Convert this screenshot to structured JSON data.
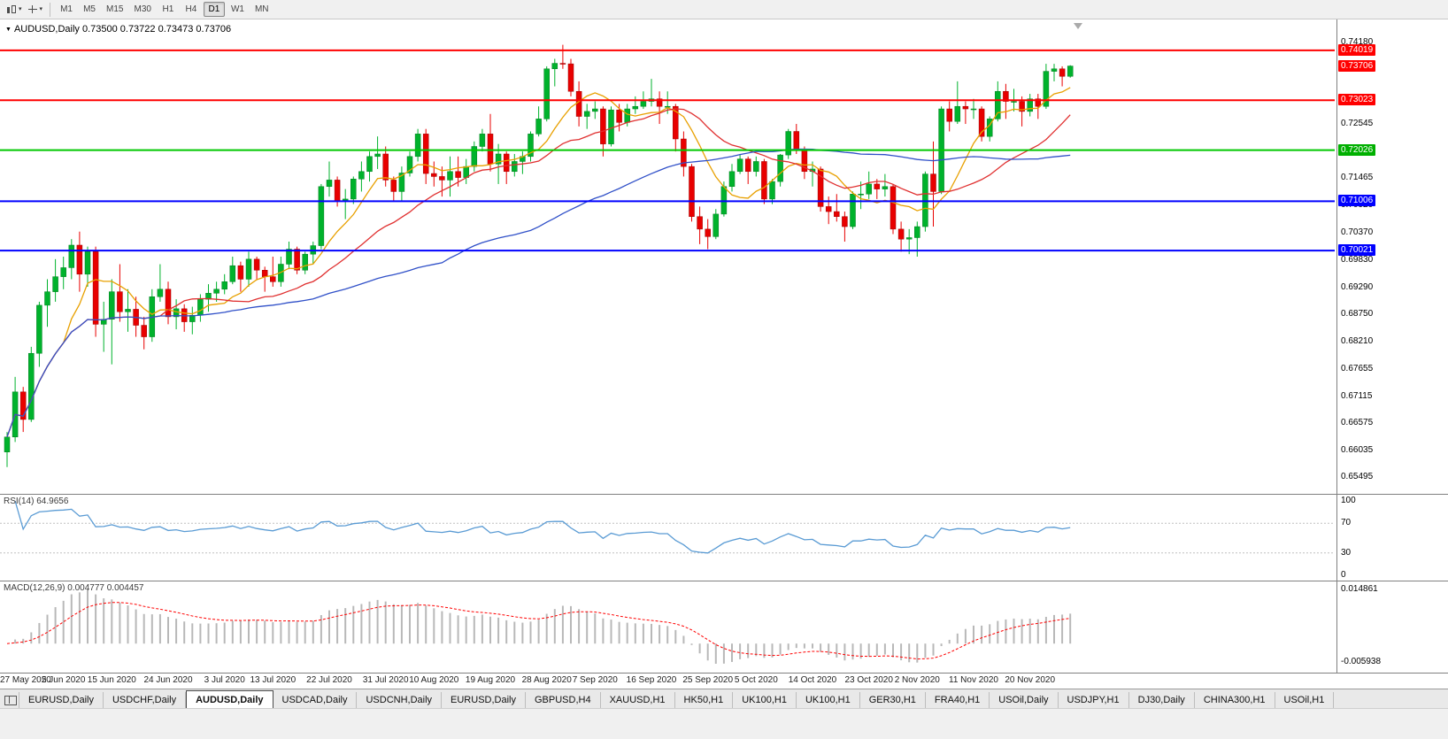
{
  "icons": {
    "caret_down": "▾",
    "triangle_down": "▼"
  },
  "colors": {
    "bull": "#00b22c",
    "bear": "#e80000",
    "bull_edge": "#007d1f",
    "bear_edge": "#9e0000",
    "rsi_line": "#5a9bd4",
    "rsi_level": "#c0c0c0",
    "macd_bar": "#b8b8b8",
    "macd_signal": "#ff0000",
    "panel_border": "#808080"
  },
  "toolbar": {
    "timeframes": [
      "M1",
      "M5",
      "M15",
      "M30",
      "H1",
      "H4",
      "D1",
      "W1",
      "MN"
    ],
    "active_timeframe": "D1"
  },
  "main_chart": {
    "title": "AUDUSD,Daily 0.73500 0.73722 0.73473 0.73706",
    "axis_labels": [
      "0.74180",
      "0.72545",
      "0.71465",
      "0.70920",
      "0.70370",
      "0.69830",
      "0.69290",
      "0.68750",
      "0.68210",
      "0.67655",
      "0.67115",
      "0.66575",
      "0.66035",
      "0.65495"
    ]
  },
  "rsi_panel": {
    "label": "RSI(14) 64.9656",
    "period": 14,
    "axis_labels": [
      "100",
      "70",
      "30",
      "0"
    ],
    "axis_values": [
      100,
      70,
      30,
      0
    ],
    "level_lines": [
      70,
      30
    ]
  },
  "macd_panel": {
    "label": "MACD(12,26,9) 0.004777 0.004457",
    "fast": 12,
    "slow": 26,
    "signal": 9,
    "axis_top": "0.014861",
    "axis_bottom": "-0.005938"
  },
  "bottom_tabs": {
    "active_index": 2,
    "tabs": [
      "EURUSD,Daily",
      "USDCHF,Daily",
      "AUDUSD,Daily",
      "USDCAD,Daily",
      "USDCNH,Daily",
      "EURUSD,Daily",
      "GBPUSD,H4",
      "XAUUSD,H1",
      "HK50,H1",
      "UK100,H1",
      "UK100,H1",
      "GER30,H1",
      "FRA40,H1",
      "USOil,Daily",
      "USDJPY,H1",
      "DJ30,Daily",
      "CHINA300,H1",
      "USOil,H1"
    ]
  },
  "chart_data": {
    "type": "candlestick",
    "symbol": "AUDUSD",
    "timeframe": "Daily",
    "current_price": "0.73706",
    "last_ohlc": {
      "open": "0.73500",
      "high": "0.73722",
      "low": "0.73473",
      "close": "0.73706"
    },
    "ylim": [
      0.652,
      0.746
    ],
    "x_tick_labels": [
      "27 May 2020",
      "5 Jun 2020",
      "15 Jun 2020",
      "24 Jun 2020",
      "3 Jul 2020",
      "13 Jul 2020",
      "22 Jul 2020",
      "31 Jul 2020",
      "10 Aug 2020",
      "19 Aug 2020",
      "28 Aug 2020",
      "7 Sep 2020",
      "16 Sep 2020",
      "25 Sep 2020",
      "5 Oct 2020",
      "14 Oct 2020",
      "23 Oct 2020",
      "2 Nov 2020",
      "11 Nov 2020",
      "20 Nov 2020"
    ],
    "x_tick_indices": [
      0,
      7,
      13,
      20,
      27,
      33,
      40,
      47,
      53,
      60,
      67,
      73,
      80,
      87,
      93,
      100,
      107,
      113,
      120,
      127
    ],
    "hlines": [
      {
        "value": 0.74019,
        "color": "#ff0000",
        "width": 2
      },
      {
        "value": 0.73023,
        "color": "#ff0000",
        "width": 2
      },
      {
        "value": 0.72026,
        "color": "#00c800",
        "width": 2
      },
      {
        "value": 0.71006,
        "color": "#0000ff",
        "width": 2
      },
      {
        "value": 0.70021,
        "color": "#0000ff",
        "width": 2
      }
    ],
    "price_badges": [
      {
        "value": "0.74019",
        "num": 0.74019,
        "color": "#ff0000"
      },
      {
        "value": "0.73706",
        "num": 0.73706,
        "color": "#ff0000"
      },
      {
        "value": "0.73023",
        "num": 0.73023,
        "color": "#ff0000"
      },
      {
        "value": "0.72026",
        "num": 0.72026,
        "color": "#00b000"
      },
      {
        "value": "0.71006",
        "num": 0.71006,
        "color": "#0000ff"
      },
      {
        "value": "0.70021",
        "num": 0.70021,
        "color": "#0000ff"
      }
    ],
    "overlays": [
      {
        "name": "ma-fast",
        "period": 8,
        "color": "#e8a000"
      },
      {
        "name": "ma-mid",
        "period": 20,
        "color": "#e03030"
      },
      {
        "name": "ma-slow",
        "period": 55,
        "color": "#3050c8"
      }
    ],
    "ohlc": [
      [
        0.66,
        0.664,
        0.657,
        0.663
      ],
      [
        0.663,
        0.675,
        0.662,
        0.672
      ],
      [
        0.672,
        0.673,
        0.664,
        0.6665
      ],
      [
        0.6665,
        0.681,
        0.666,
        0.6797
      ],
      [
        0.6797,
        0.69,
        0.677,
        0.6893
      ],
      [
        0.6893,
        0.6945,
        0.685,
        0.692
      ],
      [
        0.692,
        0.6985,
        0.69,
        0.695
      ],
      [
        0.695,
        0.699,
        0.6925,
        0.6968
      ],
      [
        0.6968,
        0.7025,
        0.6945,
        0.7013
      ],
      [
        0.7013,
        0.704,
        0.692,
        0.6955
      ],
      [
        0.6955,
        0.701,
        0.693,
        0.7
      ],
      [
        0.7,
        0.701,
        0.683,
        0.6855
      ],
      [
        0.6855,
        0.69,
        0.68,
        0.6865
      ],
      [
        0.6865,
        0.6945,
        0.6775,
        0.692
      ],
      [
        0.692,
        0.6975,
        0.686,
        0.688
      ],
      [
        0.688,
        0.6925,
        0.684,
        0.6885
      ],
      [
        0.6885,
        0.691,
        0.683,
        0.6853
      ],
      [
        0.6853,
        0.687,
        0.6805,
        0.683
      ],
      [
        0.683,
        0.6925,
        0.682,
        0.691
      ],
      [
        0.691,
        0.6975,
        0.69,
        0.6925
      ],
      [
        0.6925,
        0.694,
        0.6855,
        0.687
      ],
      [
        0.687,
        0.6905,
        0.6845,
        0.6886
      ],
      [
        0.6886,
        0.6895,
        0.684,
        0.686
      ],
      [
        0.686,
        0.689,
        0.6835,
        0.6873
      ],
      [
        0.6873,
        0.6915,
        0.686,
        0.6905
      ],
      [
        0.6905,
        0.6935,
        0.688,
        0.6917
      ],
      [
        0.6917,
        0.694,
        0.69,
        0.6925
      ],
      [
        0.6925,
        0.6955,
        0.6915,
        0.694
      ],
      [
        0.694,
        0.699,
        0.6935,
        0.6972
      ],
      [
        0.6972,
        0.698,
        0.692,
        0.6945
      ],
      [
        0.6945,
        0.7,
        0.693,
        0.6985
      ],
      [
        0.6985,
        0.699,
        0.6945,
        0.6963
      ],
      [
        0.6963,
        0.697,
        0.692,
        0.695
      ],
      [
        0.695,
        0.699,
        0.693,
        0.694
      ],
      [
        0.694,
        0.699,
        0.693,
        0.6975
      ],
      [
        0.6975,
        0.702,
        0.6965,
        0.7005
      ],
      [
        0.7005,
        0.701,
        0.6955,
        0.6963
      ],
      [
        0.6963,
        0.7,
        0.6955,
        0.6995
      ],
      [
        0.6995,
        0.702,
        0.6975,
        0.7012
      ],
      [
        0.7012,
        0.7135,
        0.7005,
        0.713
      ],
      [
        0.713,
        0.718,
        0.711,
        0.7143
      ],
      [
        0.7143,
        0.715,
        0.709,
        0.71
      ],
      [
        0.71,
        0.7125,
        0.7065,
        0.7105
      ],
      [
        0.7105,
        0.715,
        0.7095,
        0.7145
      ],
      [
        0.7145,
        0.718,
        0.712,
        0.716
      ],
      [
        0.716,
        0.72,
        0.714,
        0.719
      ],
      [
        0.719,
        0.723,
        0.7165,
        0.7195
      ],
      [
        0.7195,
        0.721,
        0.713,
        0.7143
      ],
      [
        0.7143,
        0.715,
        0.71,
        0.712
      ],
      [
        0.712,
        0.717,
        0.71,
        0.7157
      ],
      [
        0.7157,
        0.72,
        0.715,
        0.719
      ],
      [
        0.719,
        0.7245,
        0.718,
        0.7235
      ],
      [
        0.7235,
        0.7245,
        0.7135,
        0.7156
      ],
      [
        0.7156,
        0.718,
        0.713,
        0.715
      ],
      [
        0.715,
        0.717,
        0.711,
        0.7143
      ],
      [
        0.7143,
        0.719,
        0.711,
        0.716
      ],
      [
        0.716,
        0.719,
        0.713,
        0.7148
      ],
      [
        0.7148,
        0.7185,
        0.7135,
        0.717
      ],
      [
        0.717,
        0.722,
        0.716,
        0.721
      ],
      [
        0.721,
        0.7245,
        0.72,
        0.7235
      ],
      [
        0.7235,
        0.7275,
        0.716,
        0.7175
      ],
      [
        0.7175,
        0.7215,
        0.7135,
        0.7195
      ],
      [
        0.7195,
        0.72,
        0.7135,
        0.716
      ],
      [
        0.716,
        0.7195,
        0.715,
        0.718
      ],
      [
        0.718,
        0.72,
        0.7155,
        0.719
      ],
      [
        0.719,
        0.724,
        0.718,
        0.7235
      ],
      [
        0.7235,
        0.729,
        0.723,
        0.7265
      ],
      [
        0.7265,
        0.737,
        0.726,
        0.7365
      ],
      [
        0.7365,
        0.7385,
        0.733,
        0.7376
      ],
      [
        0.7376,
        0.7413,
        0.7365,
        0.7375
      ],
      [
        0.7375,
        0.7385,
        0.731,
        0.732
      ],
      [
        0.732,
        0.734,
        0.725,
        0.727
      ],
      [
        0.727,
        0.7295,
        0.7245,
        0.728
      ],
      [
        0.728,
        0.73,
        0.7265,
        0.7285
      ],
      [
        0.7285,
        0.729,
        0.719,
        0.7215
      ],
      [
        0.7215,
        0.729,
        0.721,
        0.7283
      ],
      [
        0.7283,
        0.7295,
        0.724,
        0.7258
      ],
      [
        0.7258,
        0.7295,
        0.725,
        0.7285
      ],
      [
        0.7285,
        0.731,
        0.7275,
        0.729
      ],
      [
        0.729,
        0.732,
        0.7285,
        0.73
      ],
      [
        0.73,
        0.7345,
        0.729,
        0.7305
      ],
      [
        0.7305,
        0.732,
        0.7255,
        0.729
      ],
      [
        0.729,
        0.732,
        0.7275,
        0.729
      ],
      [
        0.729,
        0.7295,
        0.72,
        0.7225
      ],
      [
        0.7225,
        0.724,
        0.715,
        0.717
      ],
      [
        0.717,
        0.7175,
        0.706,
        0.707
      ],
      [
        0.707,
        0.709,
        0.7015,
        0.7045
      ],
      [
        0.7045,
        0.7065,
        0.7005,
        0.703
      ],
      [
        0.703,
        0.7085,
        0.7025,
        0.7075
      ],
      [
        0.7075,
        0.714,
        0.707,
        0.713
      ],
      [
        0.713,
        0.7175,
        0.712,
        0.716
      ],
      [
        0.716,
        0.7195,
        0.7155,
        0.7185
      ],
      [
        0.7185,
        0.719,
        0.7135,
        0.716
      ],
      [
        0.716,
        0.719,
        0.715,
        0.718
      ],
      [
        0.718,
        0.7185,
        0.7095,
        0.7105
      ],
      [
        0.7105,
        0.7145,
        0.7095,
        0.714
      ],
      [
        0.714,
        0.7195,
        0.713,
        0.7193
      ],
      [
        0.7193,
        0.7245,
        0.7185,
        0.724
      ],
      [
        0.724,
        0.7255,
        0.7195,
        0.7205
      ],
      [
        0.7205,
        0.721,
        0.7145,
        0.716
      ],
      [
        0.716,
        0.718,
        0.713,
        0.7165
      ],
      [
        0.7165,
        0.717,
        0.708,
        0.709
      ],
      [
        0.709,
        0.711,
        0.7055,
        0.708
      ],
      [
        0.708,
        0.7115,
        0.706,
        0.707
      ],
      [
        0.707,
        0.708,
        0.702,
        0.705
      ],
      [
        0.705,
        0.712,
        0.7045,
        0.7115
      ],
      [
        0.7115,
        0.714,
        0.7085,
        0.7115
      ],
      [
        0.7115,
        0.716,
        0.7105,
        0.7135
      ],
      [
        0.7135,
        0.7145,
        0.7105,
        0.7125
      ],
      [
        0.7125,
        0.7155,
        0.711,
        0.713
      ],
      [
        0.713,
        0.7135,
        0.7035,
        0.7045
      ],
      [
        0.7045,
        0.706,
        0.7,
        0.7025
      ],
      [
        0.7025,
        0.7045,
        0.6995,
        0.7028
      ],
      [
        0.7028,
        0.706,
        0.699,
        0.705
      ],
      [
        0.705,
        0.716,
        0.704,
        0.7155
      ],
      [
        0.7155,
        0.722,
        0.705,
        0.712
      ],
      [
        0.712,
        0.729,
        0.7115,
        0.7285
      ],
      [
        0.7285,
        0.73,
        0.724,
        0.726
      ],
      [
        0.726,
        0.734,
        0.7255,
        0.729
      ],
      [
        0.729,
        0.73,
        0.7255,
        0.7285
      ],
      [
        0.7285,
        0.7305,
        0.7265,
        0.7285
      ],
      [
        0.7285,
        0.729,
        0.722,
        0.723
      ],
      [
        0.723,
        0.727,
        0.722,
        0.7265
      ],
      [
        0.7265,
        0.734,
        0.726,
        0.732
      ],
      [
        0.732,
        0.7335,
        0.7265,
        0.73
      ],
      [
        0.73,
        0.7325,
        0.728,
        0.73
      ],
      [
        0.73,
        0.731,
        0.725,
        0.728
      ],
      [
        0.728,
        0.7315,
        0.727,
        0.7305
      ],
      [
        0.7305,
        0.7315,
        0.7265,
        0.729
      ],
      [
        0.729,
        0.7375,
        0.7285,
        0.736
      ],
      [
        0.736,
        0.7375,
        0.734,
        0.7365
      ],
      [
        0.7365,
        0.737,
        0.733,
        0.735
      ],
      [
        0.735,
        0.73722,
        0.73473,
        0.73706
      ]
    ]
  }
}
